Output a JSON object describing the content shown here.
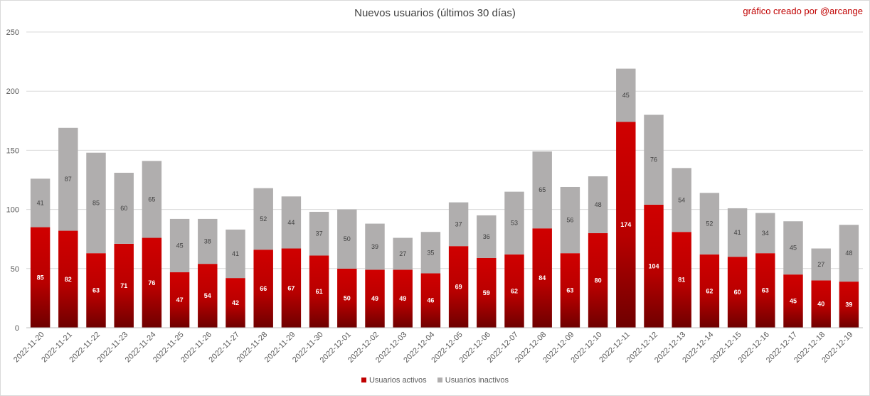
{
  "title": "Nuevos usuarios (últimos 30 días)",
  "credit": "gráfico creado por @arcange",
  "colors": {
    "active": "#c00000",
    "active_dark": "#7a0000",
    "inactive": "#b0aeae",
    "grid": "#d9d9d9"
  },
  "chart_data": {
    "type": "bar",
    "stacked": true,
    "title": "Nuevos usuarios (últimos 30 días)",
    "xlabel": "",
    "ylabel": "",
    "ylim": [
      0,
      250
    ],
    "yticks": [
      0,
      50,
      100,
      150,
      200,
      250
    ],
    "grid": true,
    "legend_position": "bottom",
    "categories": [
      "2022-11-20",
      "2022-11-21",
      "2022-11-22",
      "2022-11-23",
      "2022-11-24",
      "2022-11-25",
      "2022-11-26",
      "2022-11-27",
      "2022-11-28",
      "2022-11-29",
      "2022-11-30",
      "2022-12-01",
      "2022-12-02",
      "2022-12-03",
      "2022-12-04",
      "2022-12-05",
      "2022-12-06",
      "2022-12-07",
      "2022-12-08",
      "2022-12-09",
      "2022-12-10",
      "2022-12-11",
      "2022-12-12",
      "2022-12-13",
      "2022-12-14",
      "2022-12-15",
      "2022-12-16",
      "2022-12-17",
      "2022-12-18",
      "2022-12-19"
    ],
    "series": [
      {
        "name": "Usuarios activos",
        "values": [
          85,
          82,
          63,
          71,
          76,
          47,
          54,
          42,
          66,
          67,
          61,
          50,
          49,
          49,
          46,
          69,
          59,
          62,
          84,
          63,
          80,
          174,
          104,
          81,
          62,
          60,
          63,
          45,
          40,
          39
        ]
      },
      {
        "name": "Usuarios inactivos",
        "values": [
          41,
          87,
          85,
          60,
          65,
          45,
          38,
          41,
          52,
          44,
          37,
          50,
          39,
          27,
          35,
          37,
          36,
          53,
          65,
          56,
          48,
          45,
          76,
          54,
          52,
          41,
          34,
          45,
          27,
          48
        ]
      }
    ]
  }
}
